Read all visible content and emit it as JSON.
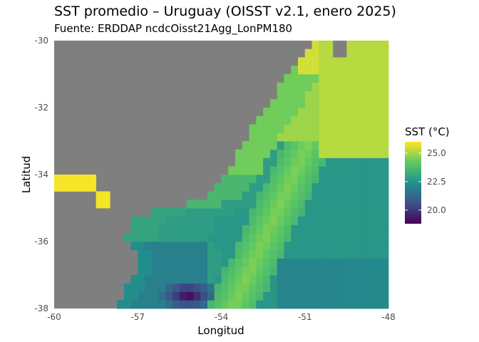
{
  "chart_data": {
    "type": "heatmap",
    "title": "SST promedio – Uruguay (OISST v2.1, enero 2025)",
    "subtitle": "Fuente: ERDDAP ncdcOisst21Agg_LonPM180",
    "xlabel": "Longitud",
    "ylabel": "Latitud",
    "xlim": [
      -60,
      -48
    ],
    "ylim": [
      -38,
      -30
    ],
    "x_ticks": [
      -60,
      -57,
      -54,
      -51,
      -48
    ],
    "y_ticks": [
      -38,
      -36,
      -34,
      -32,
      -30
    ],
    "x_tick_labels": [
      "-60",
      "-57",
      "-54",
      "-51",
      "-48"
    ],
    "y_tick_labels": [
      "-38",
      "-36",
      "-34",
      "-32",
      "-30"
    ],
    "cell_size_deg": 0.25,
    "land_color": "#7f7f7f",
    "colorscale": "viridis",
    "grid": false,
    "legend": {
      "title": "SST (°C)",
      "position": "right",
      "min": 18.8,
      "max": 26.0,
      "ticks": [
        20.0,
        22.5,
        25.0
      ],
      "tick_labels": [
        "20.0",
        "22.5",
        "25.0"
      ]
    },
    "grid_notes": "approximate reconstruction of gridded mean SST; land/no-data cells shown in gray",
    "values": {
      "bright_coast": 25.9,
      "shelf_north": 24.4,
      "shelf_mid": 23.6,
      "estuary_south": 22.3,
      "offshore_warm_band": 24.6,
      "offshore_east": 22.6,
      "cold_pocket": 18.9
    }
  }
}
